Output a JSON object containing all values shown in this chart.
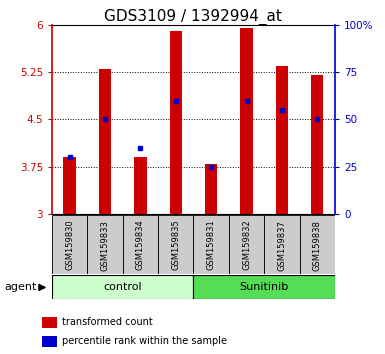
{
  "title": "GDS3109 / 1392994_at",
  "samples": [
    "GSM159830",
    "GSM159833",
    "GSM159834",
    "GSM159835",
    "GSM159831",
    "GSM159832",
    "GSM159837",
    "GSM159838"
  ],
  "transformed_count": [
    3.9,
    5.3,
    3.9,
    5.9,
    3.8,
    5.95,
    5.35,
    5.2
  ],
  "percentile_rank": [
    30,
    50,
    35,
    60,
    25,
    60,
    55,
    50
  ],
  "groups": [
    {
      "label": "control",
      "indices": [
        0,
        1,
        2,
        3
      ],
      "color": "#ccffcc"
    },
    {
      "label": "Sunitinib",
      "indices": [
        4,
        5,
        6,
        7
      ],
      "color": "#55dd55"
    }
  ],
  "ylim_left": [
    3.0,
    6.0
  ],
  "ylim_right": [
    0,
    100
  ],
  "yticks_left": [
    3.0,
    3.75,
    4.5,
    5.25,
    6.0
  ],
  "ytick_labels_left": [
    "3",
    "3.75",
    "4.5",
    "5.25",
    "6"
  ],
  "yticks_right": [
    0,
    25,
    50,
    75,
    100
  ],
  "ytick_labels_right": [
    "0",
    "25",
    "50",
    "75",
    "100%"
  ],
  "bar_color": "#cc0000",
  "marker_color": "#0000cc",
  "bar_width": 0.35,
  "title_fontsize": 11,
  "tick_fontsize": 7.5,
  "agent_label": "agent",
  "legend_items": [
    {
      "color": "#cc0000",
      "label": "transformed count"
    },
    {
      "color": "#0000cc",
      "label": "percentile rank within the sample"
    }
  ],
  "sample_box_color": "#cccccc"
}
